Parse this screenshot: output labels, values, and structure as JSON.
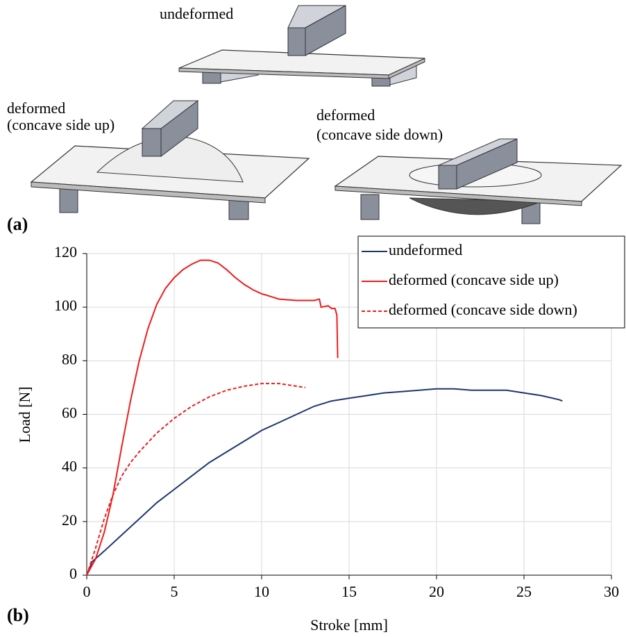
{
  "diagram": {
    "panel_label": "(a)",
    "labels": [
      "undeformed",
      "deformed",
      "(concave side up)",
      "deformed",
      "(concave side down)"
    ]
  },
  "chart_data": {
    "type": "line",
    "panel_label": "(b)",
    "x_label": "Stroke [mm]",
    "y_label": "Load [N]",
    "xlim": [
      0,
      30
    ],
    "ylim": [
      0,
      120
    ],
    "xticks": [
      0,
      5,
      10,
      15,
      20,
      25,
      30
    ],
    "yticks": [
      0,
      20,
      40,
      60,
      80,
      100,
      120
    ],
    "grid": true,
    "legend": "upper right",
    "series": [
      {
        "name": "undeformed",
        "color": "#1f3570",
        "dash": false,
        "x": [
          0,
          0.3,
          1,
          2,
          3,
          4,
          5,
          6,
          7,
          8,
          9,
          10,
          11,
          12,
          13,
          14,
          15,
          16,
          17,
          18,
          19,
          20,
          21,
          22,
          23,
          24,
          25,
          26,
          27,
          27.2
        ],
        "values": [
          0,
          5,
          9,
          15,
          21,
          27,
          32,
          37,
          42,
          46,
          50,
          54,
          57,
          60,
          63,
          65,
          66,
          67,
          68,
          68.5,
          69,
          69.5,
          69.5,
          69,
          69,
          69,
          68,
          67,
          65.5,
          65
        ]
      },
      {
        "name": "deformed (concave side up)",
        "color": "#ee1c1c",
        "dash": false,
        "x": [
          0,
          0.5,
          1,
          1.5,
          2,
          2.5,
          3,
          3.5,
          4,
          4.5,
          5,
          5.5,
          6,
          6.5,
          7,
          7.5,
          8,
          8.5,
          9,
          9.5,
          10,
          10.5,
          11,
          12,
          13,
          13.3,
          13.4,
          13.8,
          14,
          14.2,
          14.3,
          14.35
        ],
        "values": [
          0,
          6,
          16,
          30,
          48,
          65,
          80,
          92,
          101,
          107,
          111,
          114,
          116,
          117.5,
          117.5,
          116.5,
          114,
          111,
          108.5,
          106.5,
          105,
          104,
          103,
          102.5,
          102.5,
          103,
          100,
          100.5,
          99.5,
          99.5,
          97,
          81
        ]
      },
      {
        "name": "deformed (concave side down)",
        "color": "#ee1c1c",
        "dash": true,
        "x": [
          0,
          0.5,
          1,
          1.5,
          2,
          2.5,
          3,
          4,
          5,
          6,
          7,
          8,
          9,
          10,
          11,
          12,
          12.5
        ],
        "values": [
          0,
          10,
          21,
          30,
          37,
          42,
          46,
          53,
          58.5,
          63,
          66.5,
          69,
          70.5,
          71.5,
          71.5,
          70.5,
          70
        ]
      }
    ]
  }
}
